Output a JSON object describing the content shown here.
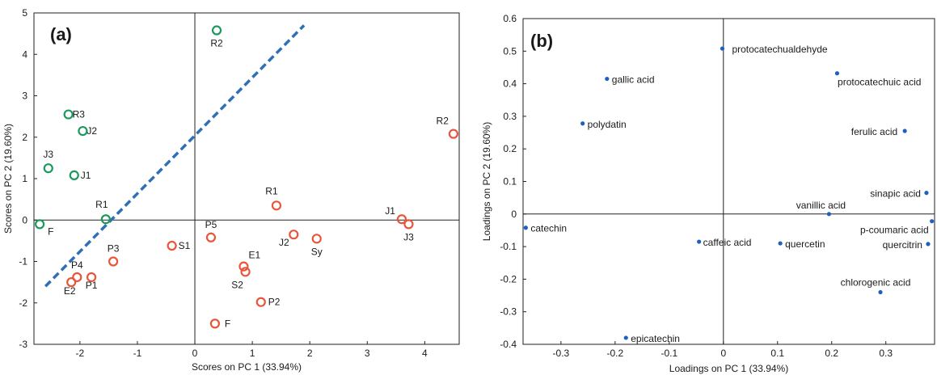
{
  "chart_data": [
    {
      "type": "scatter",
      "panel_label": "(a)",
      "xlabel": "Scores on PC 1 (33.94%)",
      "ylabel": "Scores on PC 2 (19.60%)",
      "xlim": [
        -2.8,
        4.6
      ],
      "ylim": [
        -3,
        5
      ],
      "xticks": [
        -2,
        -1,
        0,
        1,
        2,
        3,
        4
      ],
      "yticks": [
        -3,
        -2,
        -1,
        0,
        1,
        2,
        3,
        4,
        5
      ],
      "zero_lines": true,
      "grid": false,
      "colors": {
        "green_group": "#1a9a5a",
        "red_group": "#e8553a",
        "divider": "#2f6fb5"
      },
      "divider_line": {
        "x": [
          -2.6,
          1.9
        ],
        "y": [
          -1.6,
          4.7
        ],
        "style": "dashed"
      },
      "series": [
        {
          "color": "#1a9a5a",
          "points": [
            {
              "label": "R2",
              "x": 0.38,
              "y": 4.58
            },
            {
              "label": "R3",
              "x": -2.2,
              "y": 2.55
            },
            {
              "label": "J2",
              "x": -1.95,
              "y": 2.15
            },
            {
              "label": "J3",
              "x": -2.55,
              "y": 1.25
            },
            {
              "label": "J1",
              "x": -2.1,
              "y": 1.08
            },
            {
              "label": "R1",
              "x": -1.55,
              "y": 0.02
            },
            {
              "label": "F",
              "x": -2.7,
              "y": -0.1
            }
          ]
        },
        {
          "color": "#e8553a",
          "points": [
            {
              "label": "R2",
              "x": 4.5,
              "y": 2.08
            },
            {
              "label": "R1",
              "x": 1.42,
              "y": 0.35
            },
            {
              "label": "J1",
              "x": 3.6,
              "y": 0.02
            },
            {
              "label": "J3",
              "x": 3.72,
              "y": -0.1
            },
            {
              "label": "J2",
              "x": 1.72,
              "y": -0.35
            },
            {
              "label": "Sy",
              "x": 2.12,
              "y": -0.45
            },
            {
              "label": "P5",
              "x": 0.28,
              "y": -0.42
            },
            {
              "label": "S1",
              "x": -0.4,
              "y": -0.62
            },
            {
              "label": "P3",
              "x": -1.42,
              "y": -1.0
            },
            {
              "label": "E1",
              "x": 0.85,
              "y": -1.12
            },
            {
              "label": "S2",
              "x": 0.88,
              "y": -1.25
            },
            {
              "label": "P4",
              "x": -2.05,
              "y": -1.38
            },
            {
              "label": "P1",
              "x": -1.8,
              "y": -1.38
            },
            {
              "label": "E2",
              "x": -2.15,
              "y": -1.5
            },
            {
              "label": "P2",
              "x": 1.15,
              "y": -1.98
            },
            {
              "label": "F",
              "x": 0.35,
              "y": -2.5
            }
          ]
        }
      ]
    },
    {
      "type": "scatter",
      "panel_label": "(b)",
      "xlabel": "Loadings on PC 1 (33.94%)",
      "ylabel": "Loadings on PC 2 (19.60%)",
      "xlim": [
        -0.37,
        0.39
      ],
      "ylim": [
        -0.4,
        0.6
      ],
      "xticks": [
        -0.3,
        -0.2,
        -0.1,
        0,
        0.1,
        0.2,
        0.3
      ],
      "xtick_labels": [
        "-0.3",
        "-0.2",
        "-0.1",
        "0",
        "0.1",
        "0.2",
        "0.3"
      ],
      "yticks": [
        -0.4,
        -0.3,
        -0.2,
        -0.1,
        0,
        0.1,
        0.2,
        0.3,
        0.4,
        0.5,
        0.6
      ],
      "ytick_labels": [
        "-0.4",
        "-0.3",
        "-0.2",
        "-0.1",
        "0",
        "0.1",
        "0.2",
        "0.3",
        "0.4",
        "0.5",
        "0.6"
      ],
      "zero_lines": true,
      "grid": false,
      "colors": {
        "points": "#1f5fbf"
      },
      "points": [
        {
          "label": "protocatechualdehyde",
          "x": -0.002,
          "y": 0.508
        },
        {
          "label": "gallic acid",
          "x": -0.215,
          "y": 0.415
        },
        {
          "label": "protocatechuic acid",
          "x": 0.21,
          "y": 0.432
        },
        {
          "label": "polydatin",
          "x": -0.26,
          "y": 0.278
        },
        {
          "label": "ferulic acid",
          "x": 0.335,
          "y": 0.255
        },
        {
          "label": "sinapic acid",
          "x": 0.375,
          "y": 0.065
        },
        {
          "label": "vanillic acid",
          "x": 0.195,
          "y": 0.0
        },
        {
          "label": "p-coumaric acid",
          "x": 0.385,
          "y": -0.022
        },
        {
          "label": "catechin",
          "x": -0.365,
          "y": -0.042
        },
        {
          "label": "caffeic acid",
          "x": -0.045,
          "y": -0.085
        },
        {
          "label": "quercetin",
          "x": 0.105,
          "y": -0.09
        },
        {
          "label": "quercitrin",
          "x": 0.378,
          "y": -0.092
        },
        {
          "label": "chlorogenic acid",
          "x": 0.29,
          "y": -0.24
        },
        {
          "label": "epicatechin",
          "x": -0.18,
          "y": -0.38
        }
      ]
    }
  ]
}
